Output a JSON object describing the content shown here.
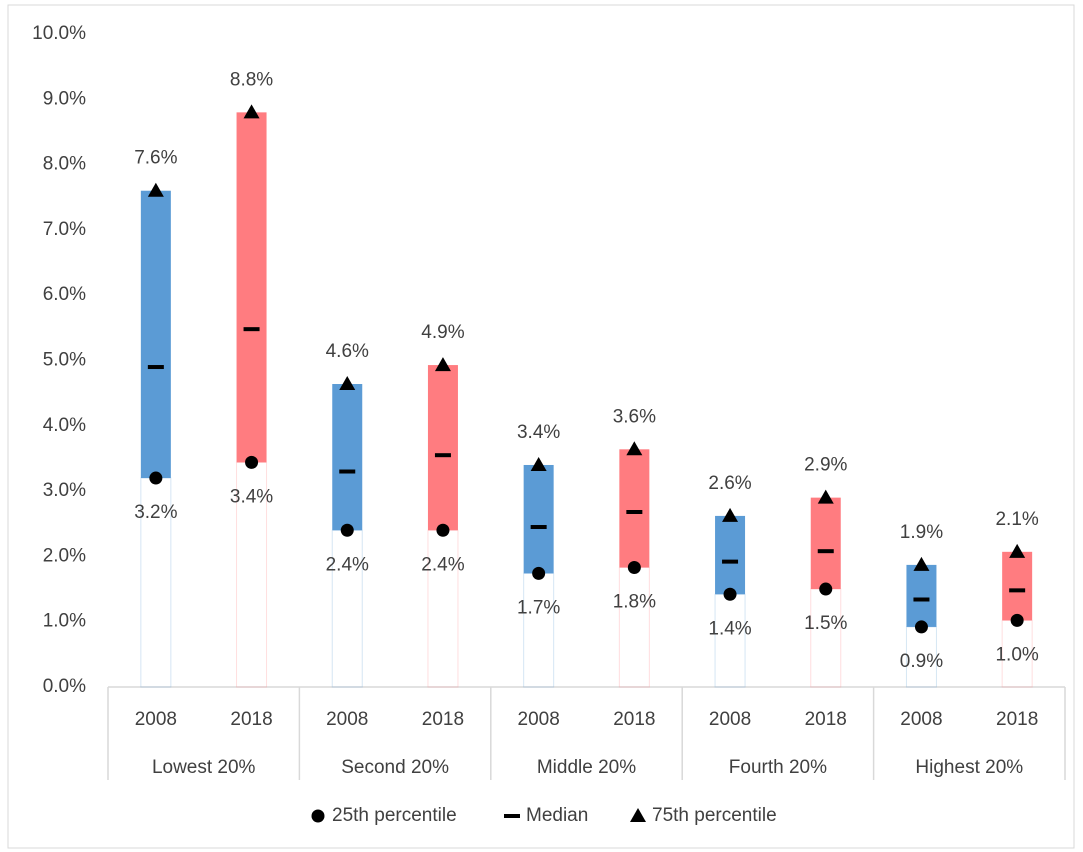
{
  "chart_data": {
    "type": "range_bar",
    "categories": [
      "2008",
      "2018",
      "2008",
      "2018",
      "2008",
      "2018",
      "2008",
      "2018",
      "2008",
      "2018"
    ],
    "groups": [
      "Lowest 20%",
      "Second 20%",
      "Middle 20%",
      "Fourth 20%",
      "Highest 20%"
    ],
    "bar_colors": [
      "#5b9bd5",
      "#ff7c80",
      "#5b9bd5",
      "#ff7c80",
      "#5b9bd5",
      "#ff7c80",
      "#5b9bd5",
      "#ff7c80",
      "#5b9bd5",
      "#ff7c80"
    ],
    "series": [
      {
        "name": "25th percentile",
        "marker": "circle",
        "color": "#000000",
        "values": [
          3.2,
          3.44,
          2.4,
          2.4,
          1.74,
          1.83,
          1.42,
          1.5,
          0.92,
          1.02
        ],
        "value_labels": [
          "3.2%",
          "3.4%",
          "2.4%",
          "2.4%",
          "1.7%",
          "1.8%",
          "1.4%",
          "1.5%",
          "0.9%",
          "1.0%"
        ]
      },
      {
        "name": "Median",
        "marker": "dash",
        "color": "#000000",
        "values": [
          4.9,
          5.48,
          3.3,
          3.55,
          2.45,
          2.68,
          1.92,
          2.08,
          1.34,
          1.48
        ]
      },
      {
        "name": "75th percentile",
        "marker": "triangle",
        "color": "#000000",
        "values": [
          7.6,
          8.8,
          4.64,
          4.93,
          3.4,
          3.64,
          2.62,
          2.9,
          1.87,
          2.07
        ],
        "value_labels": [
          "7.6%",
          "8.8%",
          "4.6%",
          "4.9%",
          "3.4%",
          "3.6%",
          "2.6%",
          "2.9%",
          "1.9%",
          "2.1%"
        ]
      }
    ],
    "ylim": [
      0,
      10
    ],
    "yticks": [
      {
        "value": 0,
        "label": "0.0%"
      },
      {
        "value": 1,
        "label": "1.0%"
      },
      {
        "value": 2,
        "label": "2.0%"
      },
      {
        "value": 3,
        "label": "3.0%"
      },
      {
        "value": 4,
        "label": "4.0%"
      },
      {
        "value": 5,
        "label": "5.0%"
      },
      {
        "value": 6,
        "label": "6.0%"
      },
      {
        "value": 7,
        "label": "7.0%"
      },
      {
        "value": 8,
        "label": "8.0%"
      },
      {
        "value": 9,
        "label": "9.0%"
      },
      {
        "value": 10,
        "label": "10.0%"
      }
    ],
    "grid": false,
    "legend": "bottom"
  }
}
